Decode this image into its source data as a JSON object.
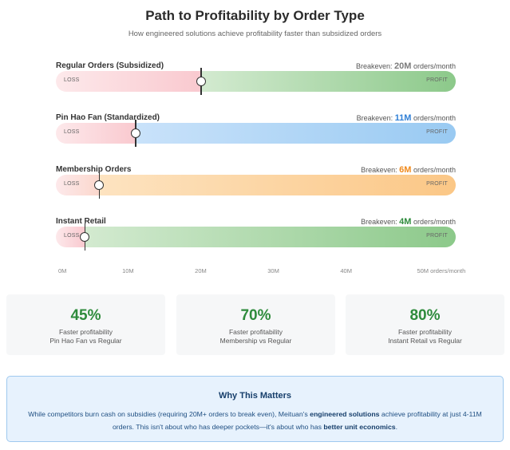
{
  "header": {
    "title": "Path to Profitability by Order Type",
    "subtitle": "How engineered solutions achieve profitability faster than subsidized orders"
  },
  "zone_labels": {
    "loss": "LOSS",
    "profit": "PROFIT"
  },
  "breakeven_prefix": "Breakeven:",
  "breakeven_suffix": "orders/month",
  "rows": [
    {
      "label": "Regular Orders (Subsidized)",
      "value_text": "20M",
      "value": 20,
      "accent": "#7c7c7c",
      "profit_from": "#d3ead0",
      "profit_to": "#8cc98a",
      "loss_to": "#f9c9cf"
    },
    {
      "label": "Pin Hao Fan (Standardized)",
      "value_text": "11M",
      "value": 11,
      "accent": "#2f7fd6",
      "profit_from": "#c9e2fa",
      "profit_to": "#99caf2",
      "loss_to": "#f9c9cf"
    },
    {
      "label": "Membership Orders",
      "value_text": "6M",
      "value": 6,
      "accent": "#f08a1c",
      "profit_from": "#fde3c0",
      "profit_to": "#fbc786",
      "loss_to": "#fbd7cc"
    },
    {
      "label": "Instant Retail",
      "value_text": "4M",
      "value": 4,
      "accent": "#2e8b3c",
      "profit_from": "#d3ead0",
      "profit_to": "#8cc98a",
      "loss_to": "#f9c9cf"
    }
  ],
  "axis": {
    "min": 0,
    "max": 55,
    "ticks": [
      {
        "value": 0,
        "label": "0M"
      },
      {
        "value": 10,
        "label": "10M"
      },
      {
        "value": 20,
        "label": "20M"
      },
      {
        "value": 30,
        "label": "30M"
      },
      {
        "value": 40,
        "label": "40M"
      },
      {
        "value": 50,
        "label": "50M orders/month"
      }
    ]
  },
  "cards": [
    {
      "value": "45%",
      "line1": "Faster profitability",
      "line2": "Pin Hao Fan vs Regular"
    },
    {
      "value": "70%",
      "line1": "Faster profitability",
      "line2": "Membership vs Regular"
    },
    {
      "value": "80%",
      "line1": "Faster profitability",
      "line2": "Instant Retail vs Regular"
    }
  ],
  "why": {
    "title": "Why This Matters",
    "p1": "While competitors burn cash on subsidies (requiring 20M+ orders to break even), Meituan's ",
    "b1": "engineered solutions",
    "p2": " achieve profitability at just 4-11M orders. This isn't about who has deeper pockets—it's about who has ",
    "b2": "better unit economics",
    "p3": "."
  },
  "chart_data": {
    "type": "bar",
    "title": "Path to Profitability by Order Type",
    "categories": [
      "Regular Orders (Subsidized)",
      "Pin Hao Fan (Standardized)",
      "Membership Orders",
      "Instant Retail"
    ],
    "values": [
      20,
      11,
      6,
      4
    ],
    "xlabel": "orders/month",
    "xlim": [
      0,
      55
    ]
  }
}
